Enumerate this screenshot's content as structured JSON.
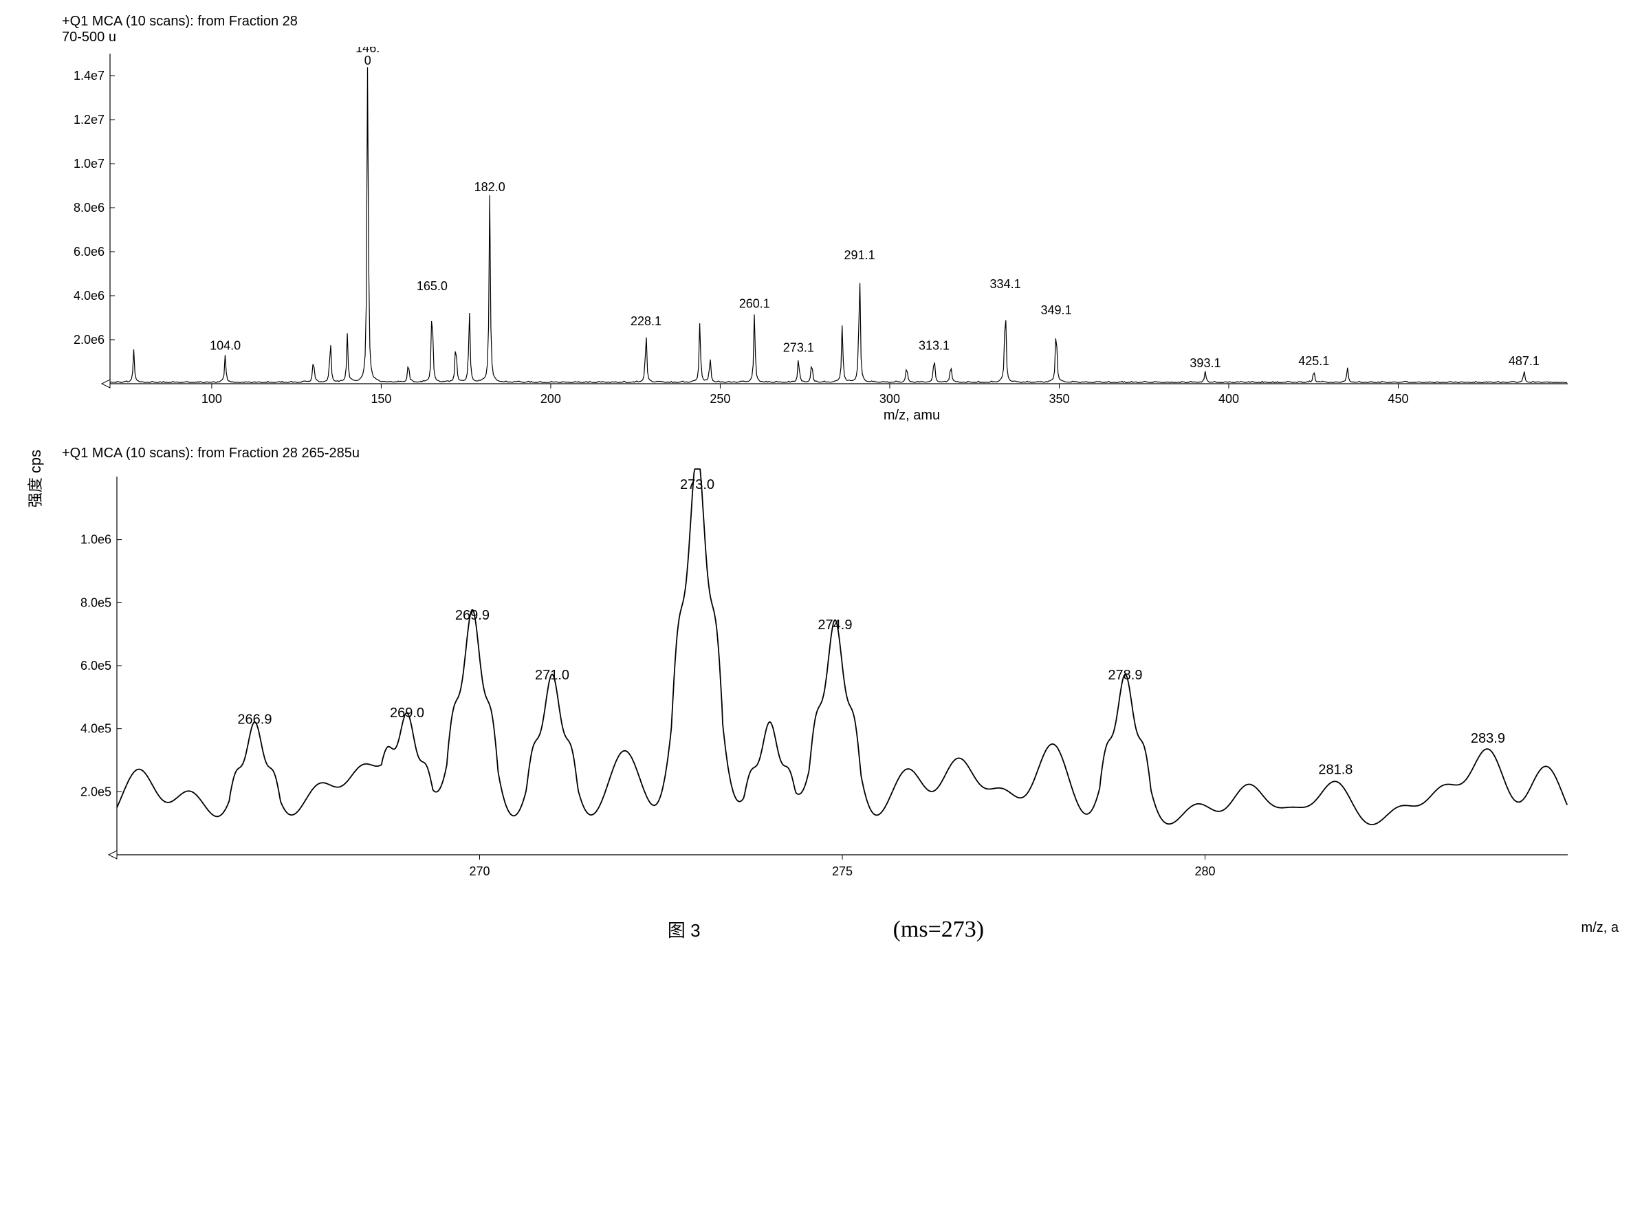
{
  "global_ylabel": "强度  cps",
  "background_color": "#ffffff",
  "line_color": "#000000",
  "axis_color": "#000000",
  "text_color": "#000000",
  "tick_fontsize": 18,
  "peaklabel_fontsize": 18,
  "title_fontsize": 20,
  "chart1": {
    "type": "mass-spectrum",
    "title": "+Q1 MCA (10 scans): from Fraction 28\n70-500 u",
    "xlabel": "m/z, amu",
    "xlim": [
      70,
      500
    ],
    "ylim": [
      0,
      15000000.0
    ],
    "xticks": [
      100,
      150,
      200,
      250,
      300,
      350,
      400,
      450
    ],
    "yticks": [
      {
        "v": 2000000.0,
        "l": "2.0e6"
      },
      {
        "v": 4000000.0,
        "l": "4.0e6"
      },
      {
        "v": 6000000.0,
        "l": "6.0e6"
      },
      {
        "v": 8000000.0,
        "l": "8.0e6"
      },
      {
        "v": 10000000.0,
        "l": "1.0e7"
      },
      {
        "v": 12000000.0,
        "l": "1.2e7"
      },
      {
        "v": 14000000.0,
        "l": "1.4e7"
      }
    ],
    "peaks": [
      {
        "mz": 77,
        "i": 1500000.0,
        "label": ""
      },
      {
        "mz": 104.0,
        "i": 1300000.0,
        "label": "104.0"
      },
      {
        "mz": 130.0,
        "i": 1200000.0,
        "label": ""
      },
      {
        "mz": 135.0,
        "i": 2000000.0,
        "label": ""
      },
      {
        "mz": 140.0,
        "i": 2200000.0,
        "label": ""
      },
      {
        "mz": 146.0,
        "i": 15000000.0,
        "label": "146.\n0"
      },
      {
        "mz": 158.0,
        "i": 1000000.0,
        "label": ""
      },
      {
        "mz": 165.0,
        "i": 4000000.0,
        "label": "165.0"
      },
      {
        "mz": 172.0,
        "i": 2000000.0,
        "label": ""
      },
      {
        "mz": 176.0,
        "i": 3300000.0,
        "label": ""
      },
      {
        "mz": 182.0,
        "i": 8500000.0,
        "label": "182.0"
      },
      {
        "mz": 228.1,
        "i": 2400000.0,
        "label": "228.1"
      },
      {
        "mz": 244.0,
        "i": 2800000.0,
        "label": ""
      },
      {
        "mz": 247.0,
        "i": 1200000.0,
        "label": ""
      },
      {
        "mz": 260.1,
        "i": 3200000.0,
        "label": "260.1"
      },
      {
        "mz": 273.1,
        "i": 1200000.0,
        "label": "273.1"
      },
      {
        "mz": 277.0,
        "i": 1000000.0,
        "label": ""
      },
      {
        "mz": 286.0,
        "i": 2700000.0,
        "label": ""
      },
      {
        "mz": 291.1,
        "i": 5400000.0,
        "label": "291.1"
      },
      {
        "mz": 305.0,
        "i": 800000.0,
        "label": ""
      },
      {
        "mz": 313.1,
        "i": 1300000.0,
        "label": "313.1"
      },
      {
        "mz": 318.0,
        "i": 900000.0,
        "label": ""
      },
      {
        "mz": 334.1,
        "i": 4100000.0,
        "label": "334.1"
      },
      {
        "mz": 349.1,
        "i": 2900000.0,
        "label": "349.1"
      },
      {
        "mz": 393.1,
        "i": 500000.0,
        "label": "393.1"
      },
      {
        "mz": 425.1,
        "i": 600000.0,
        "label": "425.1"
      },
      {
        "mz": 435.0,
        "i": 700000.0,
        "label": ""
      },
      {
        "mz": 487.1,
        "i": 600000.0,
        "label": "487.1"
      }
    ],
    "baseline_noise": 250000.0
  },
  "chart2": {
    "type": "mass-spectrum-zoom",
    "title": "+Q1 MCA (10 scans): from Fraction 28 265-285u",
    "xlabel": "m/z, a",
    "xlim": [
      265,
      285
    ],
    "ylim": [
      0,
      1200000.0
    ],
    "xticks": [
      270,
      275,
      280
    ],
    "yticks": [
      {
        "v": 200000.0,
        "l": "2.0e5"
      },
      {
        "v": 400000.0,
        "l": "4.0e5"
      },
      {
        "v": 600000.0,
        "l": "6.0e5"
      },
      {
        "v": 800000.0,
        "l": "8.0e5"
      },
      {
        "v": 1000000.0,
        "l": "1.0e6"
      }
    ],
    "profile_peaks": [
      {
        "mz": 265.3,
        "i": 270000.0,
        "label": ""
      },
      {
        "mz": 266.0,
        "i": 200000.0,
        "label": ""
      },
      {
        "mz": 266.9,
        "i": 390000.0,
        "label": "266.9"
      },
      {
        "mz": 267.8,
        "i": 220000.0,
        "label": ""
      },
      {
        "mz": 268.4,
        "i": 270000.0,
        "label": ""
      },
      {
        "mz": 269.0,
        "i": 410000.0,
        "label": "269.0"
      },
      {
        "mz": 269.9,
        "i": 720000.0,
        "label": "269.9"
      },
      {
        "mz": 271.0,
        "i": 530000.0,
        "label": "271.0"
      },
      {
        "mz": 272.0,
        "i": 330000.0,
        "label": ""
      },
      {
        "mz": 273.0,
        "i": 1180000.0,
        "label": "273.0"
      },
      {
        "mz": 274.0,
        "i": 390000.0,
        "label": ""
      },
      {
        "mz": 274.9,
        "i": 690000.0,
        "label": "274.9"
      },
      {
        "mz": 275.9,
        "i": 270000.0,
        "label": ""
      },
      {
        "mz": 276.6,
        "i": 300000.0,
        "label": ""
      },
      {
        "mz": 277.2,
        "i": 200000.0,
        "label": ""
      },
      {
        "mz": 277.9,
        "i": 350000.0,
        "label": ""
      },
      {
        "mz": 278.9,
        "i": 530000.0,
        "label": "278.9"
      },
      {
        "mz": 279.9,
        "i": 160000.0,
        "label": ""
      },
      {
        "mz": 280.6,
        "i": 220000.0,
        "label": ""
      },
      {
        "mz": 281.2,
        "i": 140000.0,
        "label": ""
      },
      {
        "mz": 281.8,
        "i": 230000.0,
        "label": "281.8"
      },
      {
        "mz": 282.7,
        "i": 150000.0,
        "label": ""
      },
      {
        "mz": 283.3,
        "i": 210000.0,
        "label": ""
      },
      {
        "mz": 283.9,
        "i": 330000.0,
        "label": "283.9"
      },
      {
        "mz": 284.7,
        "i": 280000.0,
        "label": ""
      }
    ],
    "valley": 60000.0
  },
  "caption": {
    "fig": "图 3",
    "ms": "(ms=273)"
  }
}
